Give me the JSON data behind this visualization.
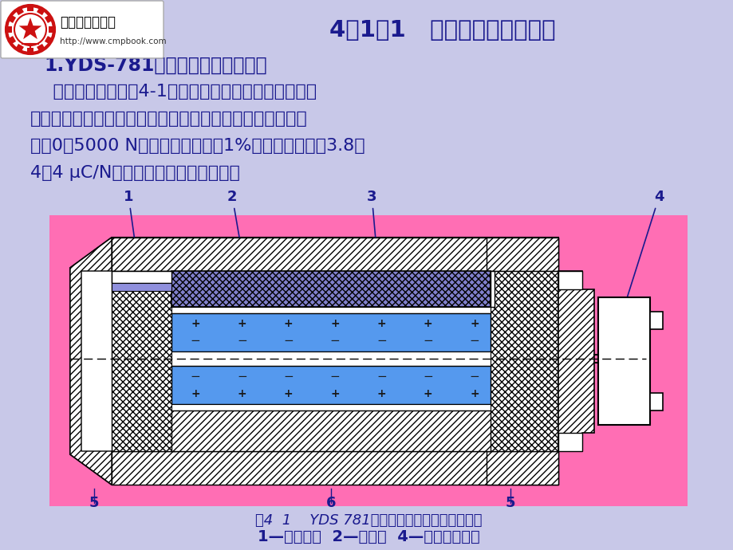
{
  "bg_color": "#c8c8e8",
  "title": "4．1．1   测力传感器及其应用",
  "title_color": "#1a1a8e",
  "title_fontsize": 21,
  "subtitle": "1.YDS-781型压电式单向力传感器",
  "subtitle_color": "#1a1a8e",
  "subtitle_fontsize": 17,
  "body_lines": [
    "    传感器的结构如图4-1所示，主要用于变化频率中等的",
    "动态力的测量，如车床动态切削力的测试。传感器的测力范",
    "围为0～5000 N，非线性误差小于1%，电荷灵敏度为3.8～",
    "4．4 μC/N，固有频率约为数十千赫。"
  ],
  "body_color": "#1a1a8e",
  "body_fontsize": 16,
  "diagram_bg": "#ff6eb4",
  "caption1": "图4  1    YDS 781型压电式单向力传感器的结构",
  "caption2": "1—传力上盖  2—压电片  4—电极引出插头",
  "caption_color": "#1a1a8e",
  "caption_fontsize": 14,
  "logo_text1": "机械工业出版社",
  "logo_text2": "http://www.cmpbook.com",
  "logo_color": "#000000",
  "label_color": "#1a1a8e",
  "label_fontsize": 13
}
